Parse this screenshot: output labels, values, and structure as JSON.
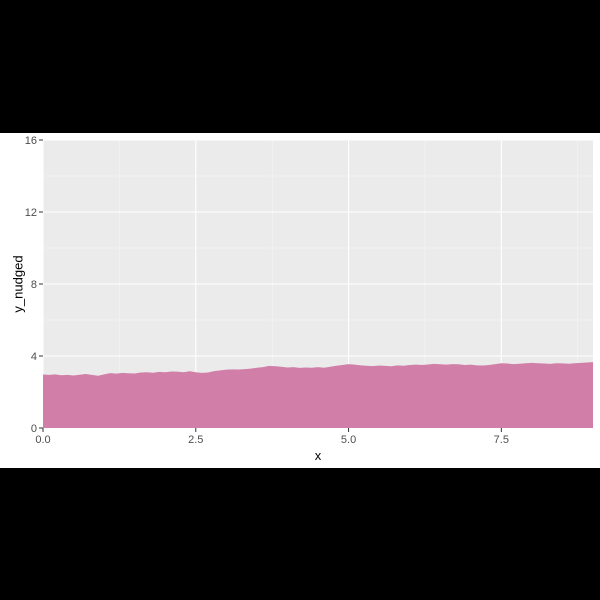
{
  "chart_data": {
    "type": "area",
    "xlabel": "x",
    "ylabel": "y_nudged",
    "xlim": [
      0,
      9
    ],
    "ylim": [
      0,
      16
    ],
    "x_ticks": [
      0.0,
      2.5,
      5.0,
      7.5
    ],
    "x_tick_labels": [
      "0.0",
      "2.5",
      "5.0",
      "7.5"
    ],
    "y_ticks": [
      0,
      4,
      8,
      12,
      16
    ],
    "y_tick_labels": [
      "0",
      "4",
      "8",
      "12",
      "16"
    ],
    "grid": true,
    "legend": "none",
    "colors": {
      "fill": "#d17fa8",
      "panel_background": "#ebebeb",
      "grid_major": "#ffffff",
      "grid_minor": "#f5f5f5",
      "page_background": "#000000"
    },
    "series": [
      {
        "x": [
          0.0,
          0.1,
          0.2,
          0.3,
          0.4,
          0.5,
          0.6,
          0.7,
          0.8,
          0.9,
          1.0,
          1.1,
          1.2,
          1.3,
          1.4,
          1.5,
          1.6,
          1.7,
          1.8,
          1.9,
          2.0,
          2.1,
          2.2,
          2.3,
          2.4,
          2.5,
          2.6,
          2.7,
          2.8,
          2.9,
          3.0,
          3.1,
          3.2,
          3.3,
          3.4,
          3.5,
          3.6,
          3.7,
          3.8,
          3.9,
          4.0,
          4.1,
          4.2,
          4.3,
          4.4,
          4.5,
          4.6,
          4.7,
          4.8,
          4.9,
          5.0,
          5.1,
          5.2,
          5.3,
          5.4,
          5.5,
          5.6,
          5.7,
          5.8,
          5.9,
          6.0,
          6.1,
          6.2,
          6.3,
          6.4,
          6.5,
          6.6,
          6.7,
          6.8,
          6.9,
          7.0,
          7.1,
          7.2,
          7.3,
          7.4,
          7.5,
          7.6,
          7.7,
          7.8,
          7.9,
          8.0,
          8.1,
          8.2,
          8.3,
          8.4,
          8.5,
          8.6,
          8.7,
          8.8,
          8.9,
          9.0
        ],
        "y": [
          2.97,
          2.95,
          2.98,
          2.93,
          2.95,
          2.92,
          2.96,
          3.0,
          2.95,
          2.9,
          2.98,
          3.05,
          3.02,
          3.06,
          3.04,
          3.03,
          3.08,
          3.1,
          3.07,
          3.12,
          3.1,
          3.14,
          3.13,
          3.1,
          3.15,
          3.1,
          3.06,
          3.08,
          3.16,
          3.2,
          3.24,
          3.26,
          3.25,
          3.27,
          3.3,
          3.35,
          3.38,
          3.45,
          3.43,
          3.4,
          3.36,
          3.38,
          3.34,
          3.36,
          3.35,
          3.38,
          3.35,
          3.4,
          3.46,
          3.5,
          3.55,
          3.52,
          3.48,
          3.46,
          3.44,
          3.47,
          3.45,
          3.43,
          3.48,
          3.46,
          3.5,
          3.52,
          3.5,
          3.53,
          3.56,
          3.54,
          3.52,
          3.55,
          3.54,
          3.5,
          3.52,
          3.48,
          3.47,
          3.5,
          3.55,
          3.6,
          3.58,
          3.55,
          3.57,
          3.6,
          3.62,
          3.6,
          3.58,
          3.56,
          3.6,
          3.59,
          3.57,
          3.6,
          3.62,
          3.64,
          3.66
        ]
      }
    ]
  }
}
